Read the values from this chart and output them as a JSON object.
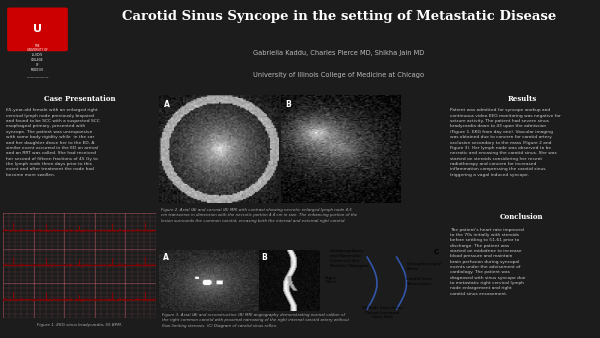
{
  "background_color": "#1c1c1c",
  "header_bg": "#000000",
  "title": "Carotid Sinus Syncope in the setting of Metastatic Disease",
  "authors": "Gabriella Kaddu, Charles Pierce MD, Shikha Jain MD",
  "institution": "University of Illinois College of Medicine at Chicago",
  "title_color": "#ffffff",
  "authors_color": "#bbbbbb",
  "section_header_color": "#ffffff",
  "body_text_color": "#cccccc",
  "case_presentation_header": "Case Presentation",
  "case_presentation_text": "65-year-old female with an enlarged right\ncervical lymph node previously biopsied\nand found to be SCC with a suspected SCC\nesophageal primary, presented with\nsyncope. The patient was unresponsive\nwith some body rigidity while  in the car\nand her daughter drove her to the ED. A\nsimilar event occurred in the ED on arrival\nand an RRT was called. She had received\nher second of fifteen fractions of 45 Gy to\nthe lymph node three days prior to this\nevent and after treatment the node had\nbecome more swollen.",
  "fig1_caption": "Figure 1. EKG sinus bradycardia, 55 BPM.",
  "fig2_caption": "Figure 2. Axial (A) and coronal (B) MRI with contrast showing necrotic enlarged lymph node 4.5\ncm transverse in dimension with the necrotic portion 4.4 cm in size. The enhancing portion of the\nlesion surrounds the common carotid, encasing both the internal and external right carotid.",
  "fig3_caption": "Figure 3. Axial (A) and reconstructive (B) MRI angiography demonstrating normal caliber of\nthe right common carotid with proximal narrowing of the right internal carotid artery without\nflow limiting stenosis. (C) Diagram of carotid sinus reflex.",
  "results_header": "Results",
  "results_text": "Patient was admitted for syncope workup and\ncontinuous video EEG monitoring was negative for\nseizure activity. The patient had severe sinus\nbradycardia down to 43 upon the admission\n(Figure 1. EKG from day one). Vascular imaging\nwas obtained due to concern for carotid artery\nocclusion secondary to the mass (Figure 2 and\nFigure 3). Her lymph node was observed to be\nnecrotic and encasing the carotid sinus. She was\nstarted on steroids considering her recent\nradiotherapy and concern for increased\ninflammation compressing the carotid sinus\ntriggering a vagal induced syncope.",
  "conclusion_header": "Conclusion",
  "conclusion_text": "The patient's heart rate improved\nto the 70s initially with steroids\nbefore settling to 51-61 prior to\ndischarge. The patient was\nstarted on midodrine to increase\nblood pressure and maintain\nbrain perfusion during syncopal\nevents under the advisement of\ncardiology. The patient was\ndiagnosed with sinus syncope due\nto metastatic right cervical lymph\nnode enlargement and right\ncarotid sinus encasement.",
  "diagram_top": "Cardioregulatory\nand Vasomotor\nCenters in the\nMedulla Oblongata",
  "diagram_left": "Vagus\nNerve",
  "diagram_right_top": "Glossopharyngeal\nNerve",
  "diagram_right_mid": "Carotid Sinus\nBaroreceptor",
  "diagram_bottom": "SA Node Stimulation\nCauses Increased\nHeart Rate",
  "label_A": "A",
  "label_B": "B",
  "label_C": "C"
}
